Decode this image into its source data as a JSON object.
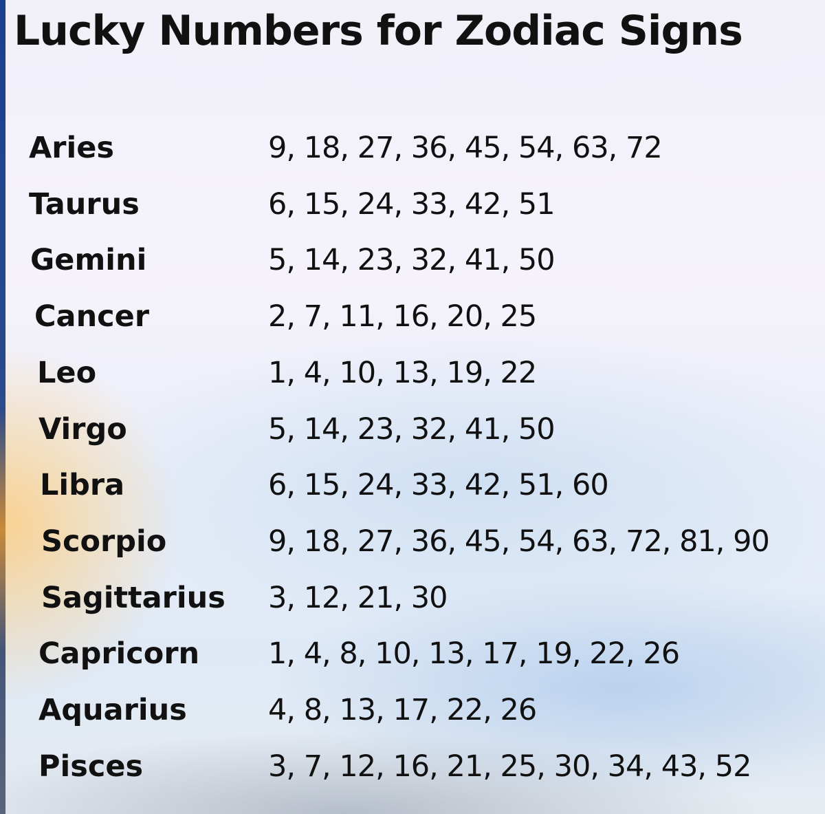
{
  "title": "Lucky Numbers for Zodiac Signs",
  "signs": [
    {
      "name": "Aries",
      "numbers": "9, 18, 27, 36, 45, 54, 63, 72"
    },
    {
      "name": "Taurus",
      "numbers": "6, 15, 24, 33, 42, 51"
    },
    {
      "name": "Gemini",
      "numbers": "5, 14, 23, 32, 41, 50"
    },
    {
      "name": "Cancer",
      "numbers": "2, 7, 11, 16, 20, 25"
    },
    {
      "name": "Leo",
      "numbers": "1, 4, 10, 13, 19, 22"
    },
    {
      "name": "Virgo",
      "numbers": "5, 14, 23, 32, 41, 50"
    },
    {
      "name": "Libra",
      "numbers": "6, 15, 24, 33, 42, 51, 60"
    },
    {
      "name": "Scorpio",
      "numbers": "9, 18, 27, 36, 45, 54, 63, 72, 81, 90"
    },
    {
      "name": "Sagittarius",
      "numbers": "3, 12, 21, 30"
    },
    {
      "name": "Capricorn",
      "numbers": "1, 4, 8, 10, 13, 17, 19, 22, 26"
    },
    {
      "name": "Aquarius",
      "numbers": "4, 8, 13, 17, 22, 26"
    },
    {
      "name": "Pisces",
      "numbers": "3, 7, 12, 16, 21, 25, 30, 34, 43, 52"
    }
  ]
}
